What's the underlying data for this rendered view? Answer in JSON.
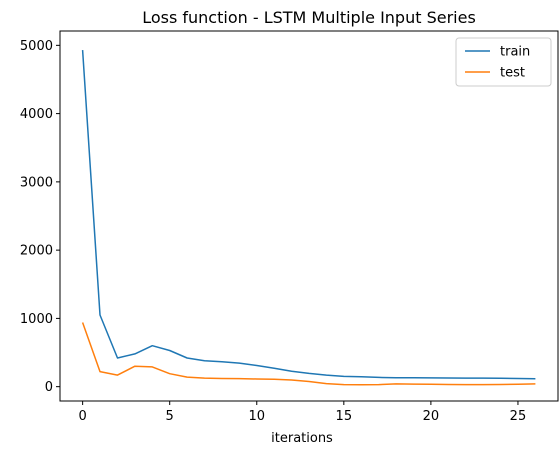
{
  "chart_data": {
    "type": "line",
    "title": "Loss function - LSTM Multiple Input Series",
    "xlabel": "iterations",
    "ylabel": "",
    "xlim": [
      -1.3,
      27.3
    ],
    "ylim": [
      -210,
      5210
    ],
    "xticks": [
      0,
      5,
      10,
      15,
      20,
      25
    ],
    "yticks": [
      0,
      1000,
      2000,
      3000,
      4000,
      5000
    ],
    "grid": false,
    "legend_position": "top-right",
    "x": [
      0,
      1,
      2,
      3,
      4,
      5,
      6,
      7,
      8,
      9,
      10,
      11,
      12,
      13,
      14,
      15,
      16,
      17,
      18,
      19,
      20,
      21,
      22,
      23,
      24,
      25,
      26
    ],
    "series": [
      {
        "name": "train",
        "color": "#1f77b4",
        "values": [
          4930,
          1050,
          420,
          480,
          600,
          530,
          420,
          380,
          365,
          345,
          310,
          270,
          225,
          195,
          170,
          150,
          145,
          135,
          132,
          130,
          128,
          127,
          126,
          125,
          123,
          120,
          117
        ]
      },
      {
        "name": "test",
        "color": "#ff7f0e",
        "values": [
          940,
          220,
          170,
          300,
          290,
          190,
          140,
          125,
          120,
          118,
          112,
          110,
          98,
          75,
          45,
          30,
          28,
          30,
          40,
          38,
          34,
          32,
          30,
          30,
          32,
          35,
          40
        ]
      }
    ]
  }
}
